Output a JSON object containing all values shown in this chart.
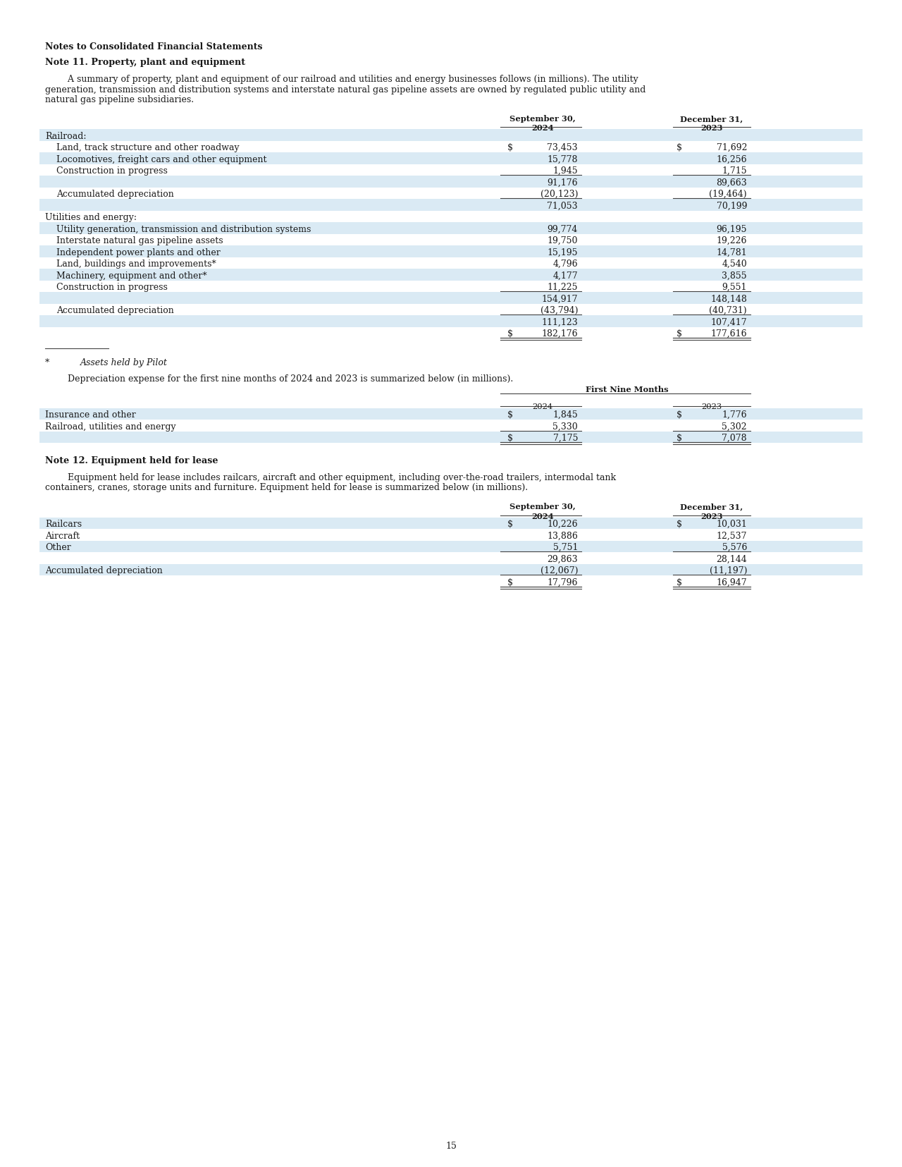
{
  "page_number": "15",
  "title1": "Notes to Consolidated Financial Statements",
  "title2": "Note 11. Property, plant and equipment",
  "paragraph1_line1": "        A summary of property, plant and equipment of our railroad and utilities and energy businesses follows (in millions). The utility",
  "paragraph1_line2": "generation, transmission and distribution systems and interstate natural gas pipeline assets are owned by regulated public utility and",
  "paragraph1_line3": "natural gas pipeline subsidiaries.",
  "table1_header_col1": "September 30,",
  "table1_header_col1b": "2024",
  "table1_header_col2": "December 31,",
  "table1_header_col2b": "2023",
  "table1_rows": [
    {
      "label": "Railroad:",
      "val1": "",
      "val2": "",
      "indent": 0,
      "shaded": true,
      "dollar1": false,
      "dollar2": false,
      "ul1": false,
      "ul2": false,
      "dul": false
    },
    {
      "label": "Land, track structure and other roadway",
      "val1": "73,453",
      "val2": "71,692",
      "indent": 1,
      "shaded": false,
      "dollar1": true,
      "dollar2": true,
      "ul1": false,
      "ul2": false,
      "dul": false
    },
    {
      "label": "Locomotives, freight cars and other equipment",
      "val1": "15,778",
      "val2": "16,256",
      "indent": 1,
      "shaded": true,
      "dollar1": false,
      "dollar2": false,
      "ul1": false,
      "ul2": false,
      "dul": false
    },
    {
      "label": "Construction in progress",
      "val1": "1,945",
      "val2": "1,715",
      "indent": 1,
      "shaded": false,
      "dollar1": false,
      "dollar2": false,
      "ul1": true,
      "ul2": true,
      "dul": false
    },
    {
      "label": "",
      "val1": "91,176",
      "val2": "89,663",
      "indent": 0,
      "shaded": true,
      "dollar1": false,
      "dollar2": false,
      "ul1": false,
      "ul2": false,
      "dul": false
    },
    {
      "label": "Accumulated depreciation",
      "val1": "(20,123)",
      "val2": "(19,464)",
      "indent": 1,
      "shaded": false,
      "dollar1": false,
      "dollar2": false,
      "ul1": true,
      "ul2": true,
      "dul": false
    },
    {
      "label": "",
      "val1": "71,053",
      "val2": "70,199",
      "indent": 0,
      "shaded": true,
      "dollar1": false,
      "dollar2": false,
      "ul1": false,
      "ul2": false,
      "dul": false
    },
    {
      "label": "Utilities and energy:",
      "val1": "",
      "val2": "",
      "indent": 0,
      "shaded": false,
      "dollar1": false,
      "dollar2": false,
      "ul1": false,
      "ul2": false,
      "dul": false
    },
    {
      "label": "Utility generation, transmission and distribution systems",
      "val1": "99,774",
      "val2": "96,195",
      "indent": 1,
      "shaded": true,
      "dollar1": false,
      "dollar2": false,
      "ul1": false,
      "ul2": false,
      "dul": false
    },
    {
      "label": "Interstate natural gas pipeline assets",
      "val1": "19,750",
      "val2": "19,226",
      "indent": 1,
      "shaded": false,
      "dollar1": false,
      "dollar2": false,
      "ul1": false,
      "ul2": false,
      "dul": false
    },
    {
      "label": "Independent power plants and other",
      "val1": "15,195",
      "val2": "14,781",
      "indent": 1,
      "shaded": true,
      "dollar1": false,
      "dollar2": false,
      "ul1": false,
      "ul2": false,
      "dul": false
    },
    {
      "label": "Land, buildings and improvements*",
      "val1": "4,796",
      "val2": "4,540",
      "indent": 1,
      "shaded": false,
      "dollar1": false,
      "dollar2": false,
      "ul1": false,
      "ul2": false,
      "dul": false
    },
    {
      "label": "Machinery, equipment and other*",
      "val1": "4,177",
      "val2": "3,855",
      "indent": 1,
      "shaded": true,
      "dollar1": false,
      "dollar2": false,
      "ul1": false,
      "ul2": false,
      "dul": false
    },
    {
      "label": "Construction in progress",
      "val1": "11,225",
      "val2": "9,551",
      "indent": 1,
      "shaded": false,
      "dollar1": false,
      "dollar2": false,
      "ul1": true,
      "ul2": true,
      "dul": false
    },
    {
      "label": "",
      "val1": "154,917",
      "val2": "148,148",
      "indent": 0,
      "shaded": true,
      "dollar1": false,
      "dollar2": false,
      "ul1": false,
      "ul2": false,
      "dul": false
    },
    {
      "label": "Accumulated depreciation",
      "val1": "(43,794)",
      "val2": "(40,731)",
      "indent": 1,
      "shaded": false,
      "dollar1": false,
      "dollar2": false,
      "ul1": true,
      "ul2": true,
      "dul": false
    },
    {
      "label": "",
      "val1": "111,123",
      "val2": "107,417",
      "indent": 0,
      "shaded": true,
      "dollar1": false,
      "dollar2": false,
      "ul1": false,
      "ul2": false,
      "dul": false
    },
    {
      "label": "",
      "val1": "182,176",
      "val2": "177,616",
      "indent": 0,
      "shaded": false,
      "dollar1": true,
      "dollar2": true,
      "ul1": true,
      "ul2": true,
      "dul": true
    }
  ],
  "paragraph2": "        Depreciation expense for the first nine months of 2024 and 2023 is summarized below (in millions).",
  "table2_header_span": "First Nine Months",
  "table2_header_col1": "2024",
  "table2_header_col2": "2023",
  "table2_rows": [
    {
      "label": "Insurance and other",
      "val1": "1,845",
      "val2": "1,776",
      "shaded": true,
      "dollar1": true,
      "dollar2": true,
      "ul1": false,
      "ul2": false,
      "dul": false
    },
    {
      "label": "Railroad, utilities and energy",
      "val1": "5,330",
      "val2": "5,302",
      "shaded": false,
      "dollar1": false,
      "dollar2": false,
      "ul1": true,
      "ul2": true,
      "dul": false
    },
    {
      "label": "",
      "val1": "7,175",
      "val2": "7,078",
      "shaded": true,
      "dollar1": true,
      "dollar2": true,
      "ul1": true,
      "ul2": true,
      "dul": true
    }
  ],
  "title3": "Note 12. Equipment held for lease",
  "paragraph3_line1": "        Equipment held for lease includes railcars, aircraft and other equipment, including over-the-road trailers, intermodal tank",
  "paragraph3_line2": "containers, cranes, storage units and furniture. Equipment held for lease is summarized below (in millions).",
  "table3_header_col1": "September 30,",
  "table3_header_col1b": "2024",
  "table3_header_col2": "December 31,",
  "table3_header_col2b": "2023",
  "table3_rows": [
    {
      "label": "Railcars",
      "val1": "10,226",
      "val2": "10,031",
      "shaded": true,
      "dollar1": true,
      "dollar2": true,
      "ul1": false,
      "ul2": false,
      "dul": false
    },
    {
      "label": "Aircraft",
      "val1": "13,886",
      "val2": "12,537",
      "shaded": false,
      "dollar1": false,
      "dollar2": false,
      "ul1": false,
      "ul2": false,
      "dul": false
    },
    {
      "label": "Other",
      "val1": "5,751",
      "val2": "5,576",
      "shaded": true,
      "dollar1": false,
      "dollar2": false,
      "ul1": true,
      "ul2": true,
      "dul": false
    },
    {
      "label": "",
      "val1": "29,863",
      "val2": "28,144",
      "shaded": false,
      "dollar1": false,
      "dollar2": false,
      "ul1": false,
      "ul2": false,
      "dul": false
    },
    {
      "label": "Accumulated depreciation",
      "val1": "(12,067)",
      "val2": "(11,197)",
      "shaded": true,
      "dollar1": false,
      "dollar2": false,
      "ul1": true,
      "ul2": true,
      "dul": false
    },
    {
      "label": "",
      "val1": "17,796",
      "val2": "16,947",
      "shaded": false,
      "dollar1": true,
      "dollar2": true,
      "ul1": true,
      "ul2": true,
      "dul": true
    }
  ],
  "bg_color": "#ffffff",
  "shaded_color": "#daeaf4",
  "line_color": "#444444",
  "text_color": "#1a1a1a",
  "font_size": 9.0
}
